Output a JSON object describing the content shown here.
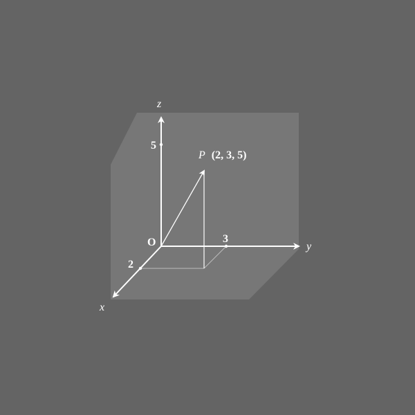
{
  "diagram": {
    "axes": {
      "x_label": "x",
      "y_label": "y",
      "z_label": "z"
    },
    "origin_label": "O",
    "ticks": {
      "x": "2",
      "y": "3",
      "z": "5"
    },
    "point": {
      "name": "P",
      "coords_text": "(2, 3, 5)",
      "coordinates": [
        2,
        3,
        5
      ]
    },
    "colors": {
      "background": "#646464",
      "box_fill": "#7a7a7a",
      "lines": "#ffffff"
    }
  }
}
